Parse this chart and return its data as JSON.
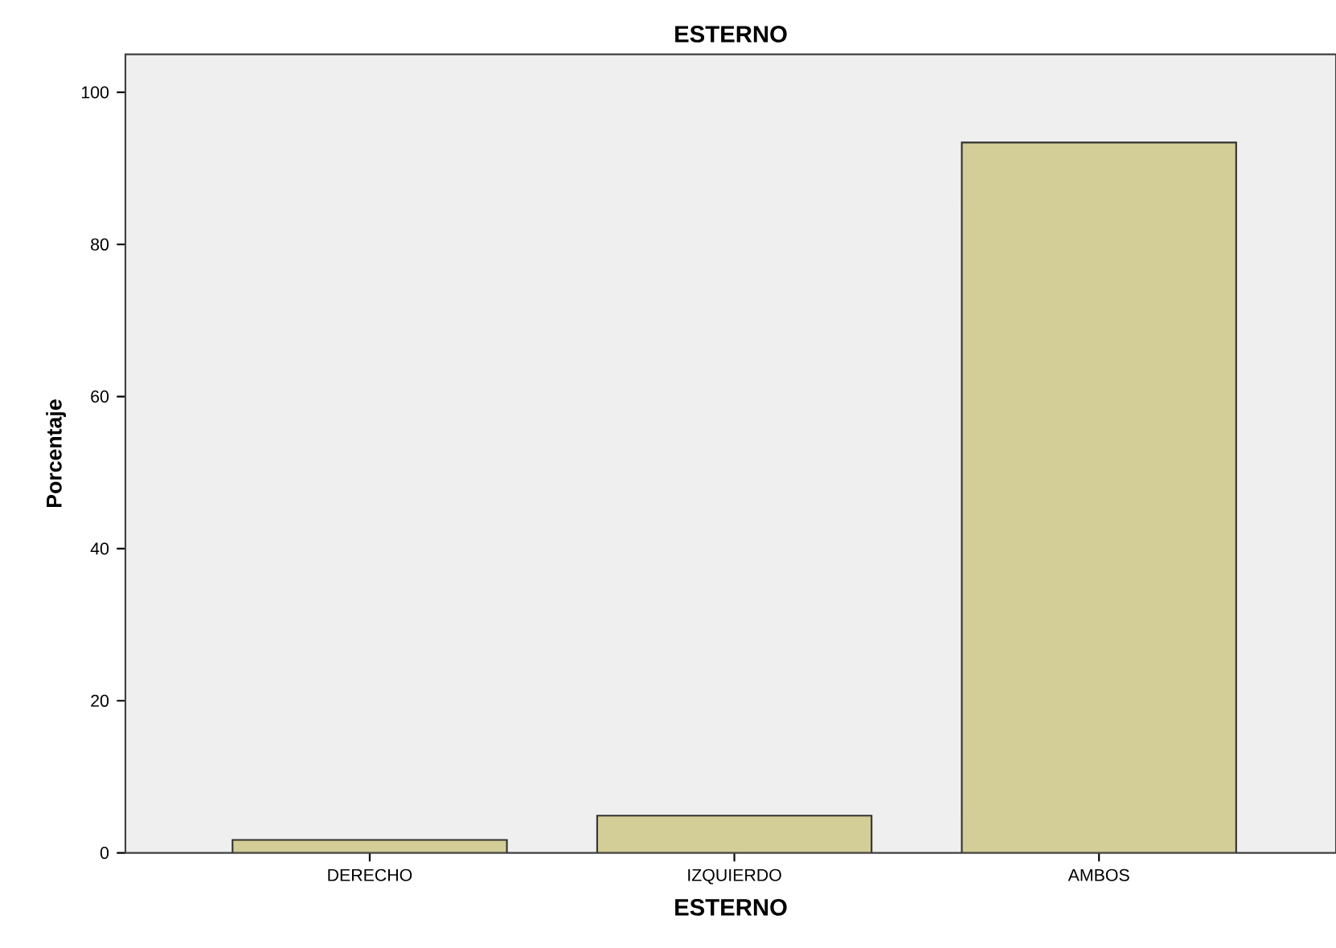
{
  "chart_data": {
    "type": "bar",
    "title": "ESTERNO",
    "xlabel": "ESTERNO",
    "ylabel": "Porcentaje",
    "categories": [
      "DERECHO",
      "IZQUIERDO",
      "AMBOS"
    ],
    "values": [
      1.7,
      4.9,
      93.4
    ],
    "color": "#d3cd97",
    "ylim": [
      0,
      105
    ],
    "yticks": [
      0,
      20,
      40,
      60,
      80,
      100
    ],
    "grid": false
  }
}
